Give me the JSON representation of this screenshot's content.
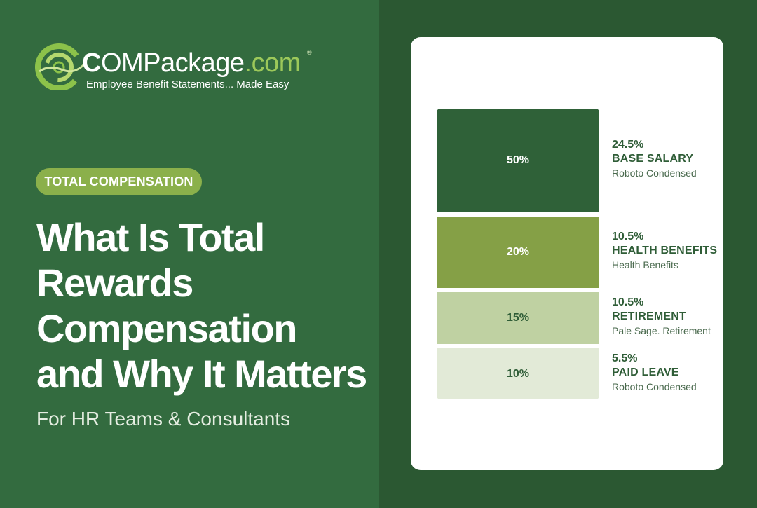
{
  "logo": {
    "wordmark_a": "C",
    "wordmark_b": "OMPackage",
    "wordmark_c": ".com",
    "registered": "®",
    "tagline": "Employee Benefit Statements... Made Easy"
  },
  "badge": {
    "label": "TOTAL COMPENSATION"
  },
  "headline": {
    "lines": [
      "What Is Total",
      "Rewards",
      "Compensation",
      "and Why It Matters"
    ],
    "subtitle": "For HR Teams & Consultants"
  },
  "colors": {
    "background_left": "#336b3f",
    "background_right": "#2b5832",
    "accent": "#8bb04b"
  },
  "chart_data": {
    "type": "bar",
    "orientation": "stacked-vertical",
    "segments": [
      {
        "value_label": "50%",
        "value": 50,
        "color": "#2f6138",
        "text_color": "#ffffff",
        "legend_pct": "24.5%",
        "legend_name": "BASE SALARY",
        "legend_desc": "Roboto Condensed"
      },
      {
        "value_label": "20%",
        "value": 20,
        "color": "#85a046",
        "text_color": "#ffffff",
        "legend_pct": "10.5%",
        "legend_name": "HEALTH BENEFITS",
        "legend_desc": "Health Benefits"
      },
      {
        "value_label": "15%",
        "value": 15,
        "color": "#bfd1a2",
        "text_color": "#2f5d37",
        "legend_pct": "10.5%",
        "legend_name": "RETIREMENT",
        "legend_desc": "Pale Sage. Retirement"
      },
      {
        "value_label": "10%",
        "value": 10,
        "color": "#e2ead7",
        "text_color": "#2f5d37",
        "legend_pct": "5.5%",
        "legend_name": "PAID LEAVE",
        "legend_desc": "Roboto Condensed"
      }
    ]
  }
}
